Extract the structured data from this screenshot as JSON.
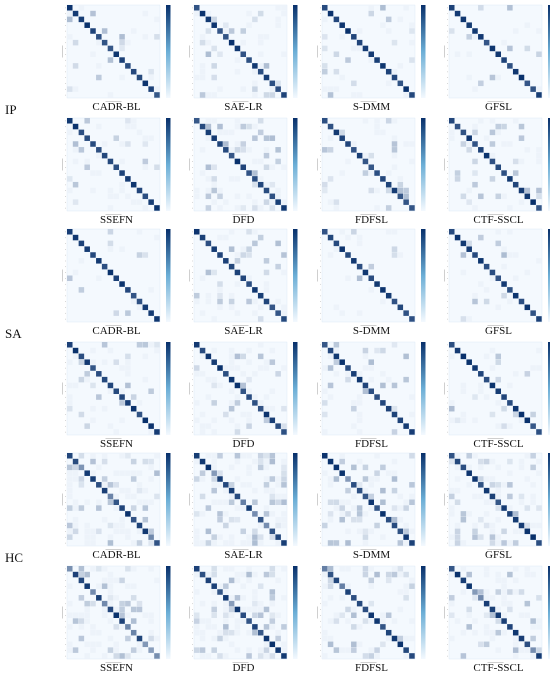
{
  "figure": {
    "rows": [
      {
        "label": "IP",
        "methods": [
          "CADR-BL",
          "SAE-LR",
          "S-DMM",
          "GFSL",
          "SSEFN",
          "DFD",
          "FDFSL",
          "CTF-SSCL"
        ]
      },
      {
        "label": "SA",
        "methods": [
          "CADR-BL",
          "SAE-LR",
          "S-DMM",
          "GFSL",
          "SSEFN",
          "DFD",
          "FDFSL",
          "CTF-SSCL"
        ]
      },
      {
        "label": "HC",
        "methods": [
          "CADR-BL",
          "SAE-LR",
          "S-DMM",
          "GFSL",
          "SSEFN",
          "DFD",
          "FDFSL",
          "CTF-SSCL"
        ]
      }
    ],
    "colors": {
      "light": "#f4f9fe",
      "dark": "#08306b",
      "grid": "#d7e6f4"
    }
  }
}
